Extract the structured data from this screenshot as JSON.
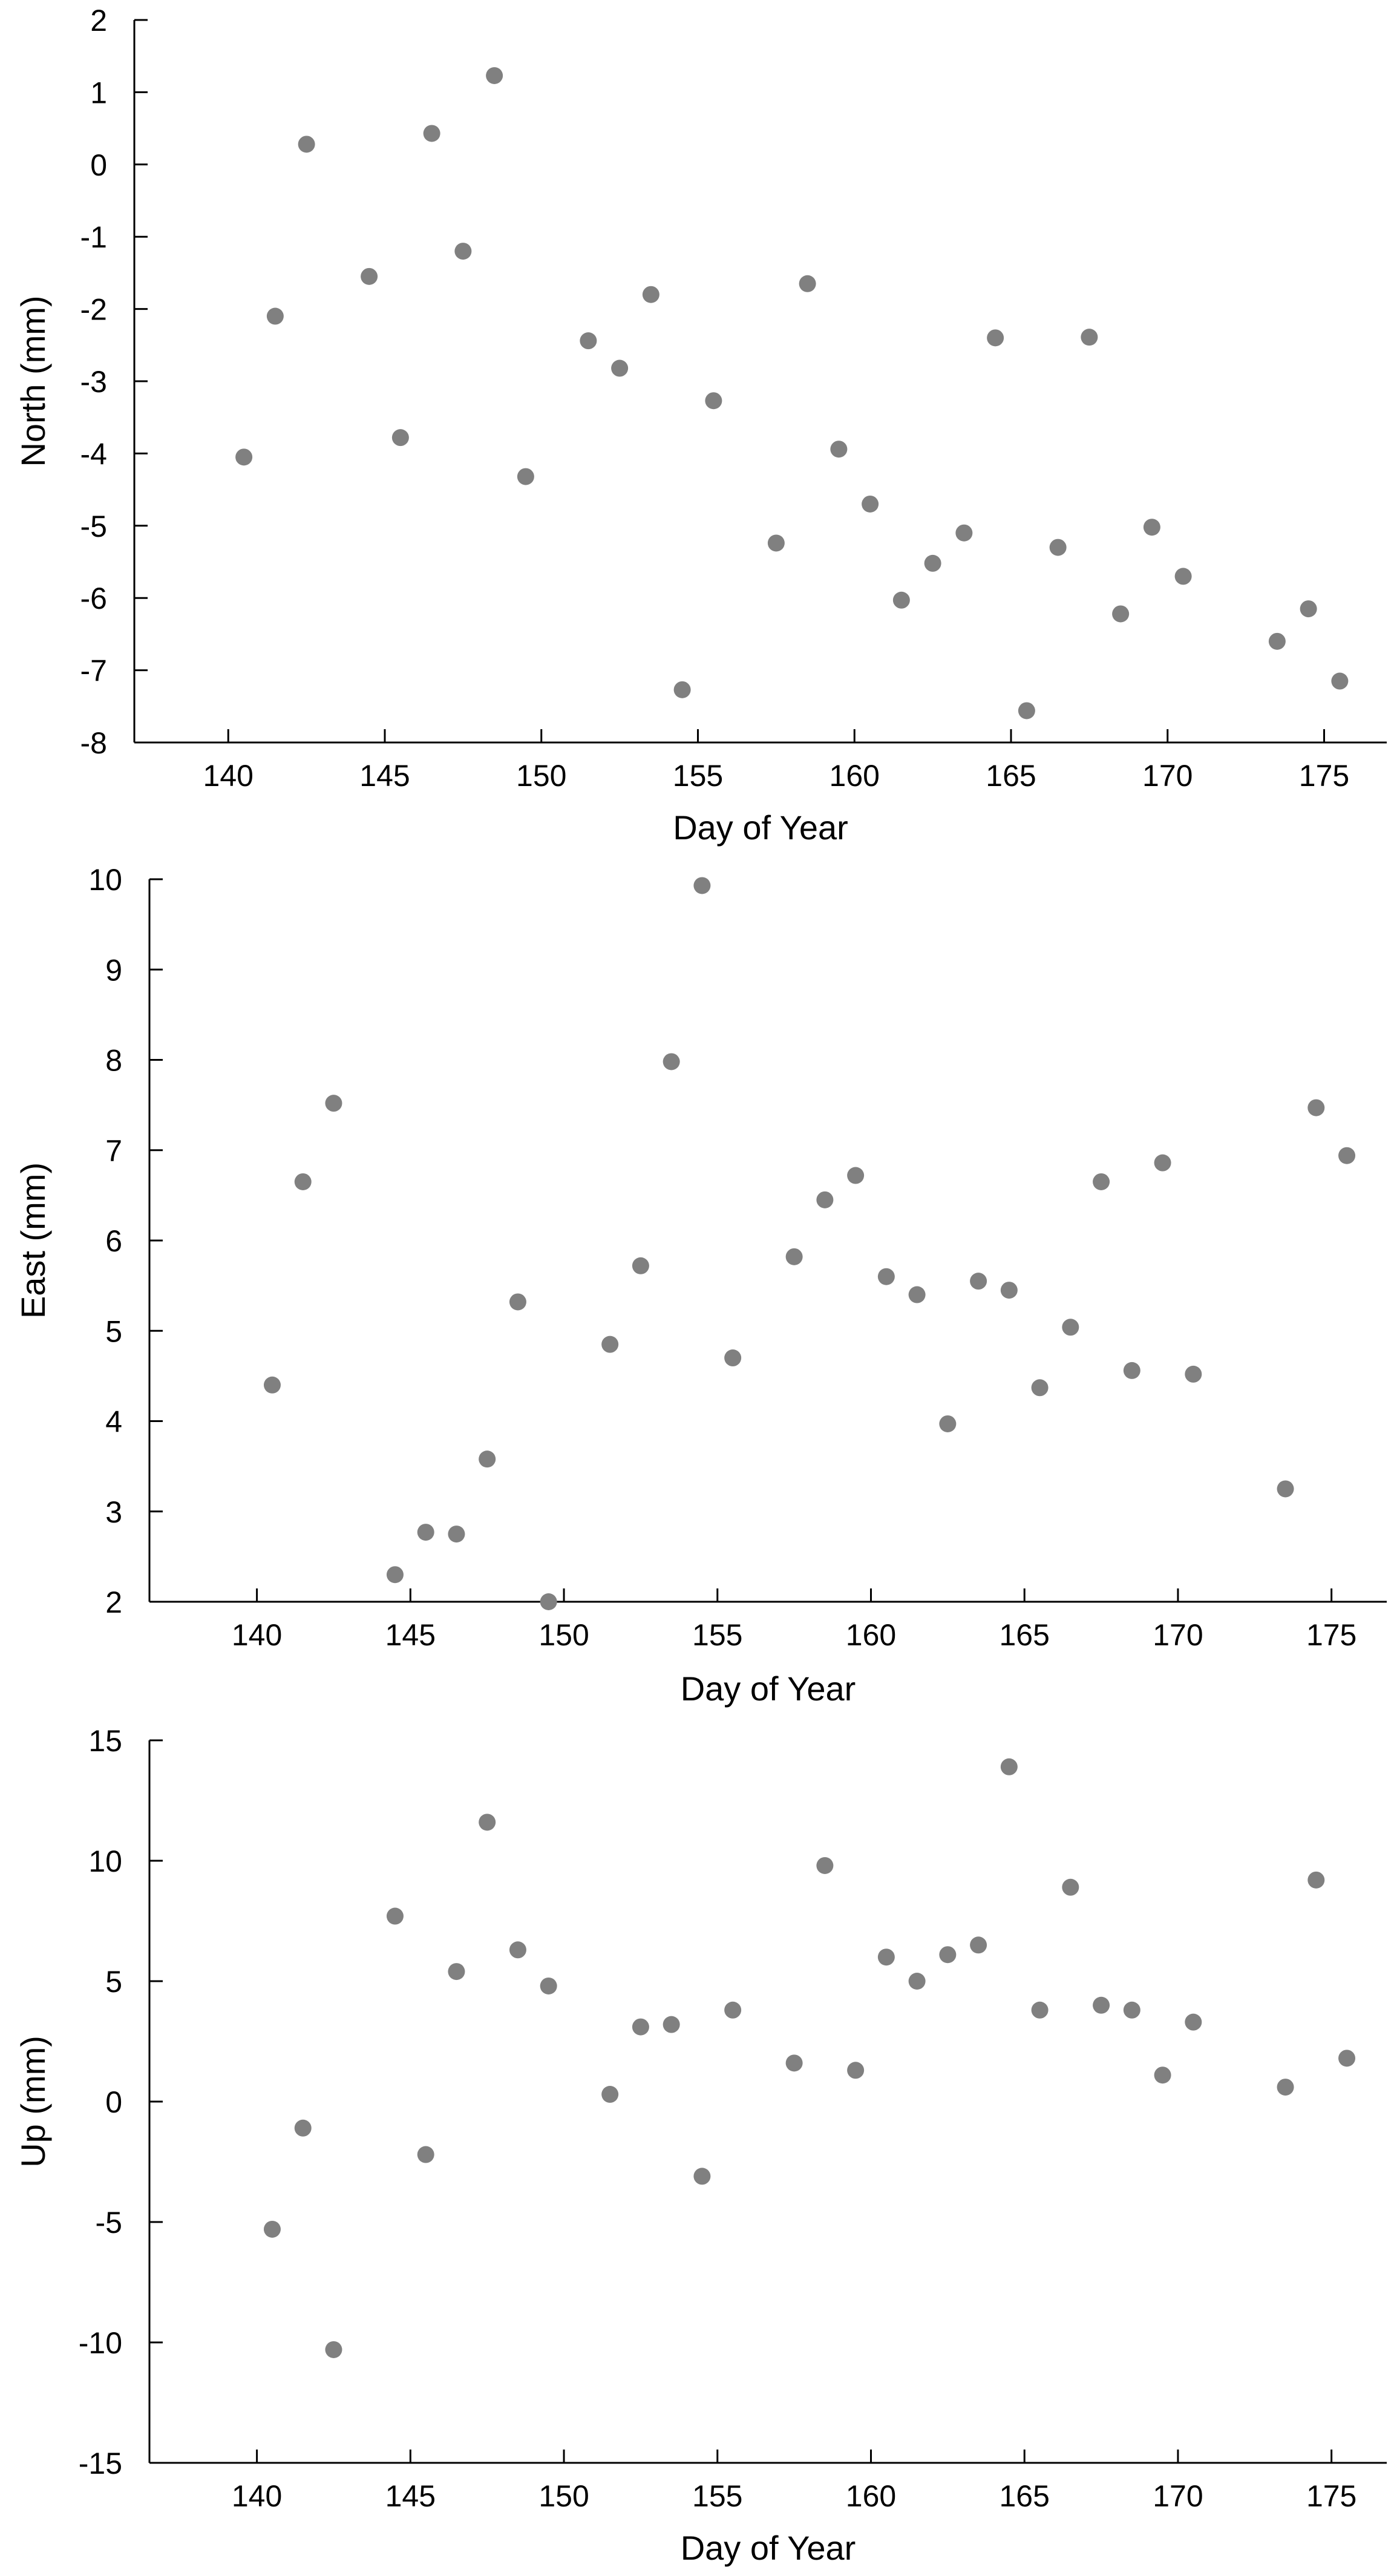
{
  "chart_data": [
    {
      "type": "scatter",
      "xlabel": "Day of Year",
      "ylabel": "North (mm)",
      "xlim": [
        137,
        177
      ],
      "ylim": [
        -8,
        2
      ],
      "xticks": [
        140,
        145,
        150,
        155,
        160,
        165,
        170,
        175
      ],
      "yticks": [
        -8,
        -7,
        -6,
        -5,
        -4,
        -3,
        -2,
        -1,
        0,
        1,
        2
      ],
      "color": "#808080",
      "grid": false,
      "series": [
        {
          "points": [
            [
              140.5,
              -4.05
            ],
            [
              141.5,
              -2.1
            ],
            [
              142.5,
              0.28
            ],
            [
              144.5,
              -1.55
            ],
            [
              145.5,
              -3.78
            ],
            [
              146.5,
              0.43
            ],
            [
              147.5,
              -1.2
            ],
            [
              148.5,
              1.23
            ],
            [
              149.5,
              -4.32
            ],
            [
              151.5,
              -2.44
            ],
            [
              152.5,
              -2.82
            ],
            [
              153.5,
              -1.8
            ],
            [
              154.5,
              -7.27
            ],
            [
              155.5,
              -3.27
            ],
            [
              157.5,
              -5.24
            ],
            [
              158.5,
              -1.65
            ],
            [
              159.5,
              -3.94
            ],
            [
              160.5,
              -4.7
            ],
            [
              161.5,
              -6.03
            ],
            [
              162.5,
              -5.52
            ],
            [
              163.5,
              -5.1
            ],
            [
              164.5,
              -2.4
            ],
            [
              165.5,
              -7.56
            ],
            [
              166.5,
              -5.3
            ],
            [
              167.5,
              -2.39
            ],
            [
              168.5,
              -6.22
            ],
            [
              169.5,
              -5.02
            ],
            [
              170.5,
              -5.7
            ],
            [
              173.5,
              -6.6
            ],
            [
              174.5,
              -6.15
            ],
            [
              175.5,
              -7.15
            ]
          ]
        }
      ]
    },
    {
      "type": "scatter",
      "xlabel": "Day of Year",
      "ylabel": "East (mm)",
      "xlim": [
        136.5,
        176.8
      ],
      "ylim": [
        2,
        10
      ],
      "xticks": [
        140,
        145,
        150,
        155,
        160,
        165,
        170,
        175
      ],
      "yticks": [
        2,
        3,
        4,
        5,
        6,
        7,
        8,
        9,
        10
      ],
      "color": "#808080",
      "grid": false,
      "series": [
        {
          "points": [
            [
              140.5,
              4.4
            ],
            [
              141.5,
              6.65
            ],
            [
              142.5,
              7.52
            ],
            [
              144.5,
              2.3
            ],
            [
              145.5,
              2.77
            ],
            [
              146.5,
              2.75
            ],
            [
              147.5,
              3.58
            ],
            [
              148.5,
              5.32
            ],
            [
              149.5,
              2.0
            ],
            [
              151.5,
              4.85
            ],
            [
              152.5,
              5.72
            ],
            [
              153.5,
              7.98
            ],
            [
              154.5,
              9.93
            ],
            [
              155.5,
              4.7
            ],
            [
              157.5,
              5.82
            ],
            [
              158.5,
              6.45
            ],
            [
              159.5,
              6.72
            ],
            [
              160.5,
              5.6
            ],
            [
              161.5,
              5.4
            ],
            [
              162.5,
              3.97
            ],
            [
              163.5,
              5.55
            ],
            [
              164.5,
              5.45
            ],
            [
              165.5,
              4.37
            ],
            [
              166.5,
              5.04
            ],
            [
              167.5,
              6.65
            ],
            [
              168.5,
              4.56
            ],
            [
              169.5,
              6.86
            ],
            [
              170.5,
              4.52
            ],
            [
              173.5,
              3.25
            ],
            [
              174.5,
              7.47
            ],
            [
              175.5,
              6.94
            ]
          ]
        }
      ]
    },
    {
      "type": "scatter",
      "xlabel": "Day of Year",
      "ylabel": "Up (mm)",
      "xlim": [
        136.5,
        176.8
      ],
      "ylim": [
        -15,
        15
      ],
      "xticks": [
        140,
        145,
        150,
        155,
        160,
        165,
        170,
        175
      ],
      "yticks": [
        -15,
        -10,
        -5,
        0,
        5,
        10,
        15
      ],
      "color": "#808080",
      "grid": false,
      "series": [
        {
          "points": [
            [
              140.5,
              -5.3
            ],
            [
              141.5,
              -1.1
            ],
            [
              142.5,
              -10.3
            ],
            [
              144.5,
              7.7
            ],
            [
              145.5,
              -2.2
            ],
            [
              146.5,
              5.4
            ],
            [
              147.5,
              11.6
            ],
            [
              148.5,
              6.3
            ],
            [
              149.5,
              4.8
            ],
            [
              151.5,
              0.3
            ],
            [
              152.5,
              3.1
            ],
            [
              153.5,
              3.2
            ],
            [
              154.5,
              -3.1
            ],
            [
              155.5,
              3.8
            ],
            [
              157.5,
              1.6
            ],
            [
              158.5,
              9.8
            ],
            [
              159.5,
              1.3
            ],
            [
              160.5,
              6.0
            ],
            [
              161.5,
              5.0
            ],
            [
              162.5,
              6.1
            ],
            [
              163.5,
              6.5
            ],
            [
              164.5,
              13.9
            ],
            [
              165.5,
              3.8
            ],
            [
              166.5,
              8.9
            ],
            [
              167.5,
              4.0
            ],
            [
              168.5,
              3.8
            ],
            [
              169.5,
              1.1
            ],
            [
              170.5,
              3.3
            ],
            [
              173.5,
              0.6
            ],
            [
              174.5,
              9.2
            ],
            [
              175.5,
              1.8
            ]
          ]
        }
      ]
    }
  ]
}
